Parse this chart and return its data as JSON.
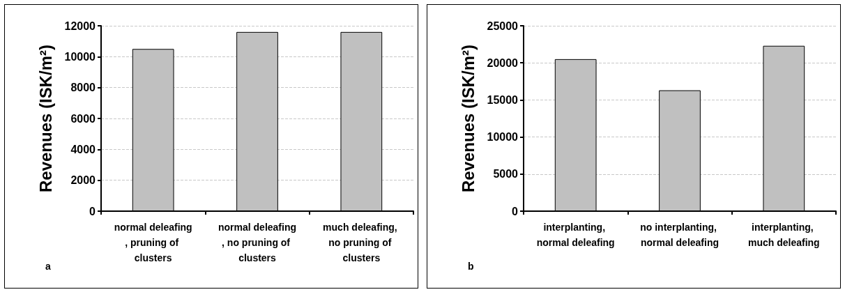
{
  "chart_data": [
    {
      "type": "bar",
      "ylabel": "Revenues (ISK/m²)",
      "categories": [
        "normal deleafing, pruning of clusters",
        "normal deleafing, no pruning of clusters",
        "much deleafing, no pruning of clusters"
      ],
      "values": [
        10500,
        11600,
        11600
      ],
      "color": "#c0c0c0",
      "ylim": [
        0,
        12000
      ],
      "yticks": [
        0,
        2000,
        4000,
        6000,
        8000,
        10000,
        12000
      ],
      "grid": "y",
      "annotations": [
        "a"
      ]
    },
    {
      "type": "bar",
      "ylabel": "Revenues (ISK/m²)",
      "categories": [
        "interplanting, normal deleafing",
        "no interplanting, normal deleafing",
        "interplanting, much deleafing"
      ],
      "values": [
        20500,
        16300,
        22300
      ],
      "color": "#c0c0c0",
      "ylim": [
        0,
        25000
      ],
      "yticks": [
        0,
        5000,
        10000,
        15000,
        20000,
        25000
      ],
      "grid": "y",
      "annotations": [
        "b"
      ]
    }
  ]
}
